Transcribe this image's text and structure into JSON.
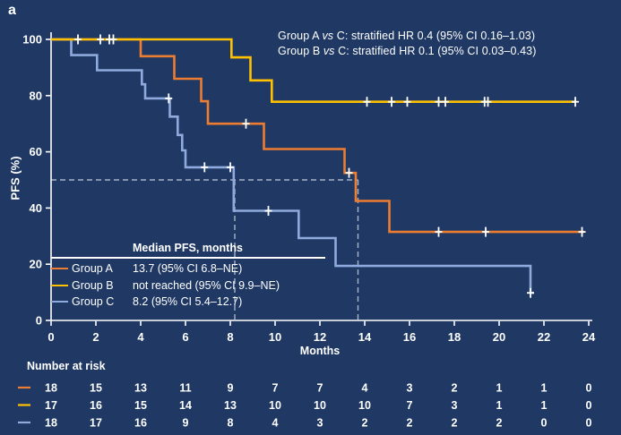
{
  "panel": {
    "label": "a"
  },
  "annotations": [
    {
      "pre": "Group A ",
      "vs": "vs",
      "post": " C: stratified HR 0.4 (95% CI 0.16–1.03)"
    },
    {
      "pre": "Group B ",
      "vs": "vs",
      "post": " C: stratified HR 0.1 (95% CI 0.03–0.43)"
    }
  ],
  "axes": {
    "x_label": "Months",
    "y_label": "PFS (%)"
  },
  "median_table": {
    "header": "Median PFS, months",
    "rows": [
      {
        "group": "Group A",
        "value": "13.7 (95% CI 6.8–NE)",
        "color": "#ED7D31"
      },
      {
        "group": "Group B",
        "value": "not reached (95% CI 9.9–NE)",
        "color": "#FFC000"
      },
      {
        "group": "Group C",
        "value": "8.2 (95% CI 5.4–12.7)",
        "color": "#8FAADC"
      }
    ]
  },
  "risk_table": {
    "title": "Number at risk",
    "months": [
      0,
      2,
      4,
      6,
      8,
      10,
      12,
      14,
      16,
      18,
      20,
      22,
      24
    ],
    "rows": [
      {
        "name": "Group A",
        "color": "#ED7D31",
        "values": [
          18,
          15,
          13,
          11,
          9,
          7,
          7,
          4,
          3,
          2,
          1,
          1,
          0
        ]
      },
      {
        "name": "Group B",
        "color": "#FFC000",
        "values": [
          17,
          16,
          15,
          14,
          13,
          10,
          10,
          10,
          7,
          3,
          1,
          1,
          0
        ]
      },
      {
        "name": "Group C",
        "color": "#8FAADC",
        "values": [
          18,
          17,
          16,
          9,
          8,
          4,
          3,
          2,
          2,
          2,
          2,
          0,
          0
        ]
      }
    ]
  },
  "chart_data": {
    "type": "line",
    "subtype": "kaplan-meier-step",
    "title": "",
    "xlabel": "Months",
    "ylabel": "PFS (%)",
    "xlim": [
      0,
      24
    ],
    "ylim": [
      0,
      100
    ],
    "x_ticks": [
      0,
      2,
      4,
      6,
      8,
      10,
      12,
      14,
      16,
      18,
      20,
      22,
      24
    ],
    "y_ticks": [
      0,
      20,
      40,
      60,
      80,
      100
    ],
    "grid": false,
    "legend_position": "inner-table",
    "background_color": "#1F3864",
    "axis_color": "#FFFFFF",
    "reference_lines": {
      "horizontal_pct": 50,
      "horizontal_extent_months": 13.7,
      "vertical_months": [
        8.2,
        13.7
      ],
      "style": "dashed",
      "color": "#A9B4C6"
    },
    "series": [
      {
        "name": "Group A",
        "color": "#ED7D31",
        "median_months": 13.7,
        "steps": [
          [
            0,
            100
          ],
          [
            4,
            100
          ],
          [
            4,
            94
          ],
          [
            5.5,
            94
          ],
          [
            5.5,
            86
          ],
          [
            6.7,
            86
          ],
          [
            6.7,
            78
          ],
          [
            7,
            78
          ],
          [
            7,
            70
          ],
          [
            9.5,
            70
          ],
          [
            9.5,
            61
          ],
          [
            13.1,
            61
          ],
          [
            13.1,
            52.5
          ],
          [
            13.6,
            52.5
          ],
          [
            13.6,
            42.5
          ],
          [
            15.1,
            42.5
          ],
          [
            15.1,
            31.5
          ],
          [
            23.8,
            31.5
          ]
        ],
        "censors": [
          [
            8.7,
            70
          ],
          [
            13.3,
            52.5
          ],
          [
            17.3,
            31.5
          ],
          [
            19.4,
            31.5
          ],
          [
            23.7,
            31.5
          ]
        ]
      },
      {
        "name": "Group C",
        "color": "#8FAADC",
        "median_months": 8.2,
        "steps": [
          [
            0,
            100
          ],
          [
            0.9,
            100
          ],
          [
            0.9,
            94.4
          ],
          [
            2.05,
            94.4
          ],
          [
            2.05,
            89
          ],
          [
            4.05,
            89
          ],
          [
            4.05,
            84
          ],
          [
            4.2,
            84
          ],
          [
            4.2,
            79
          ],
          [
            5.3,
            79
          ],
          [
            5.3,
            72.5
          ],
          [
            5.65,
            72.5
          ],
          [
            5.65,
            66
          ],
          [
            5.85,
            66
          ],
          [
            5.85,
            60.5
          ],
          [
            6,
            60.5
          ],
          [
            6,
            54.5
          ],
          [
            8.15,
            54.5
          ],
          [
            8.15,
            39
          ],
          [
            11.05,
            39
          ],
          [
            11.05,
            29.3
          ],
          [
            12.7,
            29.3
          ],
          [
            12.7,
            19.4
          ],
          [
            21.4,
            19.4
          ],
          [
            21.4,
            9.8
          ],
          [
            21.55,
            9.8
          ]
        ],
        "censors": [
          [
            5.25,
            79
          ],
          [
            6.85,
            54.5
          ],
          [
            8,
            54.5
          ],
          [
            9.7,
            39
          ],
          [
            21.4,
            9.8
          ]
        ]
      },
      {
        "name": "Group B",
        "color": "#FFC000",
        "median_months": null,
        "steps": [
          [
            0,
            100
          ],
          [
            8.05,
            100
          ],
          [
            8.05,
            93.6
          ],
          [
            8.9,
            93.6
          ],
          [
            8.9,
            85.4
          ],
          [
            9.85,
            85.4
          ],
          [
            9.85,
            77.8
          ],
          [
            23.4,
            77.8
          ]
        ],
        "censors": [
          [
            1.2,
            100
          ],
          [
            2.2,
            100
          ],
          [
            2.6,
            100
          ],
          [
            2.78,
            100
          ],
          [
            14.1,
            77.8
          ],
          [
            15.2,
            77.8
          ],
          [
            15.9,
            77.8
          ],
          [
            17.3,
            77.8
          ],
          [
            17.6,
            77.8
          ],
          [
            19.35,
            77.8
          ],
          [
            19.5,
            77.8
          ],
          [
            23.4,
            77.8
          ]
        ]
      }
    ]
  }
}
